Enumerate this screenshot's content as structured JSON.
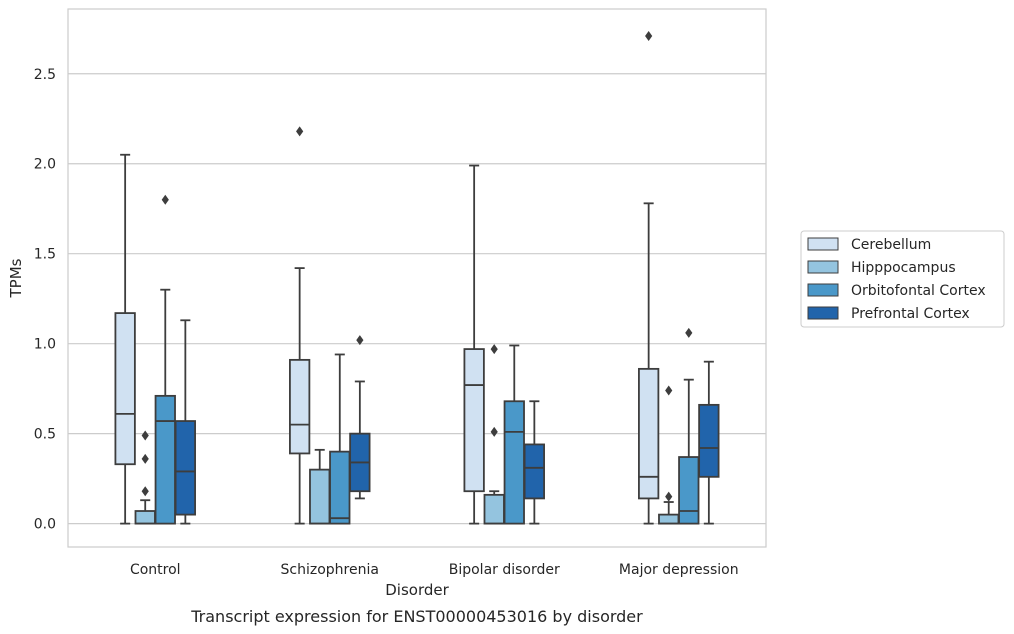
{
  "chart_data": {
    "type": "box",
    "caption": "Transcript expression for ENST00000453016 by disorder",
    "xlabel": "Disorder",
    "ylabel": "TPMs",
    "ylim": [
      -0.13,
      2.86
    ],
    "yticks": [
      "0.0",
      "0.5",
      "1.0",
      "1.5",
      "2.0",
      "2.5"
    ],
    "grid": "horizontal",
    "legend_position": "right",
    "categories": [
      "Control",
      "Schizophrenia",
      "Bipolar disorder",
      "Major depression"
    ],
    "series": [
      {
        "name": "Cerebellum",
        "color": "#d0e1f2",
        "boxes": [
          {
            "whisker_low": 0.0,
            "q1": 0.33,
            "median": 0.61,
            "q3": 1.17,
            "whisker_high": 2.05,
            "outliers": []
          },
          {
            "whisker_low": 0.0,
            "q1": 0.39,
            "median": 0.55,
            "q3": 0.91,
            "whisker_high": 1.42,
            "outliers": [
              2.18
            ]
          },
          {
            "whisker_low": 0.0,
            "q1": 0.18,
            "median": 0.77,
            "q3": 0.97,
            "whisker_high": 1.99,
            "outliers": []
          },
          {
            "whisker_low": 0.0,
            "q1": 0.14,
            "median": 0.26,
            "q3": 0.86,
            "whisker_high": 1.78,
            "outliers": [
              2.71
            ]
          }
        ]
      },
      {
        "name": "Hipppocampus",
        "color": "#94c4df",
        "boxes": [
          {
            "whisker_low": 0.0,
            "q1": 0.0,
            "median": 0.0,
            "q3": 0.07,
            "whisker_high": 0.13,
            "outliers": [
              0.18,
              0.36,
              0.49
            ]
          },
          {
            "whisker_low": 0.0,
            "q1": 0.0,
            "median": 0.0,
            "q3": 0.3,
            "whisker_high": 0.41,
            "outliers": []
          },
          {
            "whisker_low": 0.0,
            "q1": 0.0,
            "median": 0.0,
            "q3": 0.16,
            "whisker_high": 0.18,
            "outliers": [
              0.51,
              0.97
            ]
          },
          {
            "whisker_low": 0.0,
            "q1": 0.0,
            "median": 0.0,
            "q3": 0.05,
            "whisker_high": 0.12,
            "outliers": [
              0.15,
              0.74
            ]
          }
        ]
      },
      {
        "name": "Orbitofontal Cortex",
        "color": "#4a98c9",
        "boxes": [
          {
            "whisker_low": 0.0,
            "q1": 0.0,
            "median": 0.57,
            "q3": 0.71,
            "whisker_high": 1.3,
            "outliers": [
              1.8
            ]
          },
          {
            "whisker_low": 0.0,
            "q1": 0.0,
            "median": 0.03,
            "q3": 0.4,
            "whisker_high": 0.94,
            "outliers": []
          },
          {
            "whisker_low": 0.0,
            "q1": 0.0,
            "median": 0.51,
            "q3": 0.68,
            "whisker_high": 0.99,
            "outliers": []
          },
          {
            "whisker_low": 0.0,
            "q1": 0.0,
            "median": 0.07,
            "q3": 0.37,
            "whisker_high": 0.8,
            "outliers": [
              1.06
            ]
          }
        ]
      },
      {
        "name": "Prefrontal Cortex",
        "color": "#2164ab",
        "boxes": [
          {
            "whisker_low": 0.0,
            "q1": 0.05,
            "median": 0.29,
            "q3": 0.57,
            "whisker_high": 1.13,
            "outliers": []
          },
          {
            "whisker_low": 0.14,
            "q1": 0.18,
            "median": 0.34,
            "q3": 0.5,
            "whisker_high": 0.79,
            "outliers": [
              1.02
            ]
          },
          {
            "whisker_low": 0.0,
            "q1": 0.14,
            "median": 0.31,
            "q3": 0.44,
            "whisker_high": 0.68,
            "outliers": []
          },
          {
            "whisker_low": 0.0,
            "q1": 0.26,
            "median": 0.42,
            "q3": 0.66,
            "whisker_high": 0.9,
            "outliers": []
          }
        ]
      }
    ]
  }
}
